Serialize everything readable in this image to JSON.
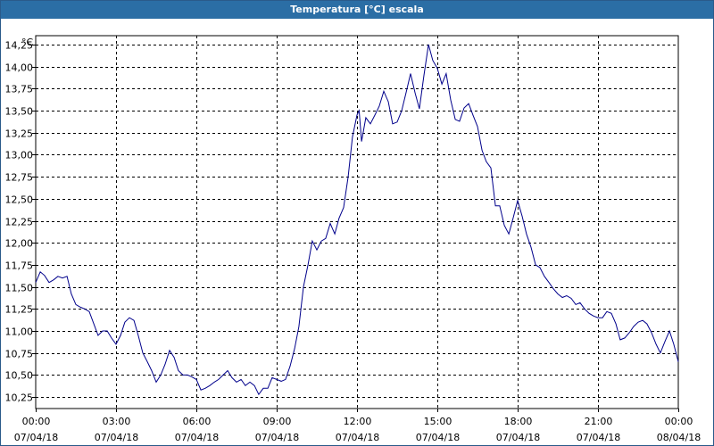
{
  "window": {
    "title": "Temperatura [°C] escala"
  },
  "chart_data": {
    "type": "line",
    "title": "Temperatura [°C] escala",
    "ylabel": "°C",
    "xlabel": "",
    "ylim": [
      10.12,
      14.35
    ],
    "xlim": [
      0,
      24
    ],
    "grid": true,
    "y_ticks": [
      "10,25",
      "10,50",
      "10,75",
      "11,00",
      "11,25",
      "11,50",
      "11,75",
      "12,00",
      "12,25",
      "12,50",
      "12,75",
      "13,00",
      "13,25",
      "13,50",
      "13,75",
      "14,00",
      "14,25"
    ],
    "y_tick_values": [
      10.25,
      10.5,
      10.75,
      11.0,
      11.25,
      11.5,
      11.75,
      12.0,
      12.25,
      12.5,
      12.75,
      13.0,
      13.25,
      13.5,
      13.75,
      14.0,
      14.25
    ],
    "x_ticks": [
      {
        "time": "00:00",
        "date": "07/04/18",
        "hour": 0
      },
      {
        "time": "03:00",
        "date": "07/04/18",
        "hour": 3
      },
      {
        "time": "06:00",
        "date": "07/04/18",
        "hour": 6
      },
      {
        "time": "09:00",
        "date": "07/04/18",
        "hour": 9
      },
      {
        "time": "12:00",
        "date": "07/04/18",
        "hour": 12
      },
      {
        "time": "15:00",
        "date": "07/04/18",
        "hour": 15
      },
      {
        "time": "18:00",
        "date": "07/04/18",
        "hour": 18
      },
      {
        "time": "21:00",
        "date": "07/04/18",
        "hour": 21
      },
      {
        "time": "00:00",
        "date": "08/04/18",
        "hour": 24
      }
    ],
    "series": [
      {
        "color": "#00008b",
        "points": [
          [
            0.0,
            11.55
          ],
          [
            0.17,
            11.67
          ],
          [
            0.33,
            11.63
          ],
          [
            0.5,
            11.55
          ],
          [
            0.67,
            11.58
          ],
          [
            0.83,
            11.62
          ],
          [
            1.0,
            11.6
          ],
          [
            1.17,
            11.62
          ],
          [
            1.33,
            11.42
          ],
          [
            1.5,
            11.3
          ],
          [
            1.67,
            11.27
          ],
          [
            1.83,
            11.25
          ],
          [
            2.0,
            11.22
          ],
          [
            2.17,
            11.08
          ],
          [
            2.33,
            10.95
          ],
          [
            2.5,
            11.0
          ],
          [
            2.67,
            11.0
          ],
          [
            2.83,
            10.92
          ],
          [
            3.0,
            10.85
          ],
          [
            3.17,
            10.95
          ],
          [
            3.33,
            11.1
          ],
          [
            3.5,
            11.15
          ],
          [
            3.67,
            11.12
          ],
          [
            3.83,
            10.95
          ],
          [
            4.0,
            10.75
          ],
          [
            4.17,
            10.65
          ],
          [
            4.33,
            10.55
          ],
          [
            4.5,
            10.42
          ],
          [
            4.67,
            10.5
          ],
          [
            4.83,
            10.62
          ],
          [
            5.0,
            10.78
          ],
          [
            5.17,
            10.7
          ],
          [
            5.33,
            10.55
          ],
          [
            5.5,
            10.5
          ],
          [
            5.67,
            10.5
          ],
          [
            5.83,
            10.48
          ],
          [
            6.0,
            10.45
          ],
          [
            6.17,
            10.33
          ],
          [
            6.33,
            10.35
          ],
          [
            6.5,
            10.38
          ],
          [
            6.67,
            10.42
          ],
          [
            6.83,
            10.45
          ],
          [
            7.0,
            10.5
          ],
          [
            7.17,
            10.55
          ],
          [
            7.33,
            10.47
          ],
          [
            7.5,
            10.42
          ],
          [
            7.67,
            10.45
          ],
          [
            7.83,
            10.38
          ],
          [
            8.0,
            10.42
          ],
          [
            8.17,
            10.38
          ],
          [
            8.33,
            10.28
          ],
          [
            8.5,
            10.35
          ],
          [
            8.67,
            10.35
          ],
          [
            8.83,
            10.47
          ],
          [
            9.0,
            10.45
          ],
          [
            9.17,
            10.43
          ],
          [
            9.33,
            10.45
          ],
          [
            9.5,
            10.6
          ],
          [
            9.67,
            10.8
          ],
          [
            9.83,
            11.05
          ],
          [
            10.0,
            11.5
          ],
          [
            10.17,
            11.75
          ],
          [
            10.33,
            12.02
          ],
          [
            10.5,
            11.92
          ],
          [
            10.67,
            12.02
          ],
          [
            10.83,
            12.05
          ],
          [
            11.0,
            12.22
          ],
          [
            11.17,
            12.1
          ],
          [
            11.33,
            12.28
          ],
          [
            11.5,
            12.4
          ],
          [
            11.67,
            12.75
          ],
          [
            11.83,
            13.2
          ],
          [
            12.0,
            13.45
          ],
          [
            12.08,
            13.5
          ],
          [
            12.17,
            13.15
          ],
          [
            12.33,
            13.42
          ],
          [
            12.5,
            13.35
          ],
          [
            12.67,
            13.45
          ],
          [
            12.83,
            13.55
          ],
          [
            13.0,
            13.72
          ],
          [
            13.17,
            13.6
          ],
          [
            13.33,
            13.35
          ],
          [
            13.5,
            13.37
          ],
          [
            13.67,
            13.5
          ],
          [
            13.83,
            13.7
          ],
          [
            14.0,
            13.92
          ],
          [
            14.17,
            13.7
          ],
          [
            14.33,
            13.52
          ],
          [
            14.5,
            13.9
          ],
          [
            14.67,
            14.25
          ],
          [
            14.83,
            14.07
          ],
          [
            15.0,
            13.98
          ],
          [
            15.17,
            13.8
          ],
          [
            15.33,
            13.92
          ],
          [
            15.5,
            13.62
          ],
          [
            15.67,
            13.4
          ],
          [
            15.83,
            13.38
          ],
          [
            16.0,
            13.53
          ],
          [
            16.17,
            13.58
          ],
          [
            16.33,
            13.45
          ],
          [
            16.5,
            13.32
          ],
          [
            16.67,
            13.05
          ],
          [
            16.83,
            12.92
          ],
          [
            17.0,
            12.85
          ],
          [
            17.17,
            12.42
          ],
          [
            17.33,
            12.42
          ],
          [
            17.5,
            12.2
          ],
          [
            17.67,
            12.1
          ],
          [
            17.83,
            12.28
          ],
          [
            18.0,
            12.48
          ],
          [
            18.17,
            12.3
          ],
          [
            18.33,
            12.1
          ],
          [
            18.5,
            11.95
          ],
          [
            18.67,
            11.75
          ],
          [
            18.83,
            11.72
          ],
          [
            19.0,
            11.62
          ],
          [
            19.17,
            11.55
          ],
          [
            19.33,
            11.48
          ],
          [
            19.5,
            11.42
          ],
          [
            19.67,
            11.38
          ],
          [
            19.83,
            11.4
          ],
          [
            20.0,
            11.37
          ],
          [
            20.17,
            11.3
          ],
          [
            20.33,
            11.32
          ],
          [
            20.5,
            11.25
          ],
          [
            20.67,
            11.2
          ],
          [
            20.83,
            11.17
          ],
          [
            21.0,
            11.15
          ],
          [
            21.17,
            11.15
          ],
          [
            21.33,
            11.22
          ],
          [
            21.5,
            11.2
          ],
          [
            21.67,
            11.08
          ],
          [
            21.83,
            10.9
          ],
          [
            22.0,
            10.92
          ],
          [
            22.17,
            10.98
          ],
          [
            22.33,
            11.05
          ],
          [
            22.5,
            11.1
          ],
          [
            22.67,
            11.12
          ],
          [
            22.83,
            11.08
          ],
          [
            23.0,
            10.98
          ],
          [
            23.17,
            10.85
          ],
          [
            23.33,
            10.75
          ],
          [
            23.5,
            10.88
          ],
          [
            23.67,
            11.0
          ],
          [
            23.83,
            10.85
          ],
          [
            24.0,
            10.65
          ]
        ]
      }
    ]
  }
}
